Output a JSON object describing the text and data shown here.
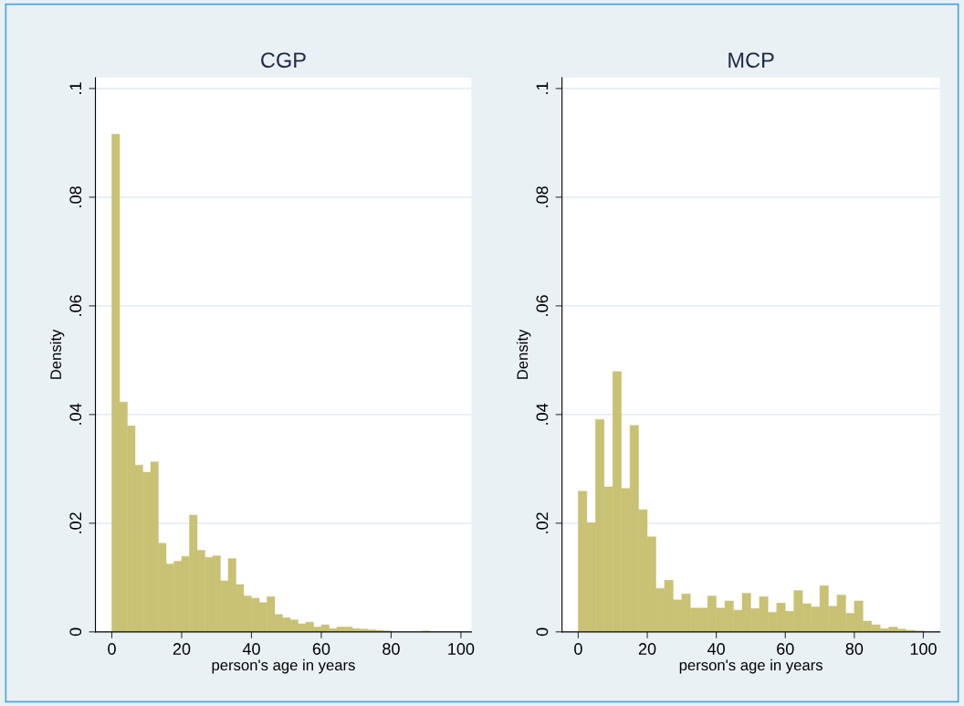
{
  "chart_data": [
    {
      "type": "histogram",
      "title": "CGP",
      "xlabel": "person's age in years",
      "ylabel": "Density",
      "color": "#c9c173",
      "bins": [
        0,
        2.222,
        4.444,
        6.667,
        8.889,
        11.111,
        13.333,
        15.556,
        17.778,
        20,
        22.222,
        24.444,
        26.667,
        28.889,
        31.111,
        33.333,
        35.556,
        37.778,
        40,
        42.222,
        44.444,
        46.667,
        48.889,
        51.111,
        53.333,
        55.556,
        57.778,
        60,
        62.222,
        64.444,
        66.667,
        68.889,
        71.111,
        73.333,
        75.556,
        77.778,
        80,
        82.222,
        84.444,
        86.667,
        88.889,
        91.111,
        93.333,
        95.556,
        97.778,
        100
      ],
      "values": [
        0.0916,
        0.0423,
        0.0379,
        0.0307,
        0.0294,
        0.0313,
        0.0163,
        0.0125,
        0.013,
        0.0139,
        0.0215,
        0.015,
        0.0137,
        0.014,
        0.0094,
        0.0135,
        0.0087,
        0.0066,
        0.0062,
        0.0054,
        0.0065,
        0.0032,
        0.0026,
        0.0022,
        0.0015,
        0.0018,
        0.0009,
        0.0013,
        0.0006,
        0.0009,
        0.0009,
        0.0006,
        0.0005,
        0.0004,
        0.0003,
        0.0002,
        null,
        null,
        null,
        null,
        0.0002,
        0,
        0,
        0,
        0
      ],
      "xlim": [
        -4.7,
        103
      ],
      "ylim": [
        0,
        0.102
      ],
      "xticks": [
        0,
        20,
        40,
        60,
        80,
        100
      ],
      "yticks": [
        0,
        {
          "value": 0.02,
          "label": ".02"
        },
        {
          "value": 0.04,
          "label": ".04"
        },
        {
          "value": 0.06,
          "label": ".06"
        },
        {
          "value": 0.08,
          "label": ".08"
        },
        {
          "value": 0.1,
          "label": ".1"
        }
      ],
      "grid": "y"
    },
    {
      "type": "histogram",
      "title": "MCP",
      "xlabel": "person's age in years",
      "ylabel": "Density",
      "color": "#c9c173",
      "bins": [
        0,
        2.5,
        5,
        7.5,
        10,
        12.5,
        15,
        17.5,
        20,
        22.5,
        25,
        27.5,
        30,
        32.5,
        35,
        37.5,
        40,
        42.5,
        45,
        47.5,
        50,
        52.5,
        55,
        57.5,
        60,
        62.5,
        65,
        67.5,
        70,
        72.5,
        75,
        77.5,
        80,
        82.5,
        85,
        87.5,
        90,
        92.5,
        95,
        97.5,
        100
      ],
      "values": [
        0.0259,
        0.0201,
        0.0391,
        0.0267,
        0.0479,
        0.0264,
        0.038,
        0.0225,
        0.0175,
        0.008,
        0.0095,
        0.0059,
        0.007,
        0.0044,
        0.0044,
        0.0066,
        0.0044,
        0.0057,
        0.004,
        0.0071,
        0.0043,
        0.0065,
        0.0036,
        0.0053,
        0.0038,
        0.0076,
        0.0052,
        0.0046,
        0.0085,
        0.0047,
        0.0068,
        0.0034,
        0.0057,
        0.002,
        0.0013,
        0.0006,
        0.0009,
        0.0005,
        0.0003,
        0.0002
      ],
      "xlim": [
        -4.7,
        104.8
      ],
      "ylim": [
        0,
        0.102
      ],
      "xticks": [
        0,
        20,
        40,
        60,
        80,
        100
      ],
      "yticks": [
        0,
        {
          "value": 0.02,
          "label": ".02"
        },
        {
          "value": 0.04,
          "label": ".04"
        },
        {
          "value": 0.06,
          "label": ".06"
        },
        {
          "value": 0.08,
          "label": ".08"
        },
        {
          "value": 0.1,
          "label": ".1"
        }
      ],
      "grid": "y"
    }
  ]
}
